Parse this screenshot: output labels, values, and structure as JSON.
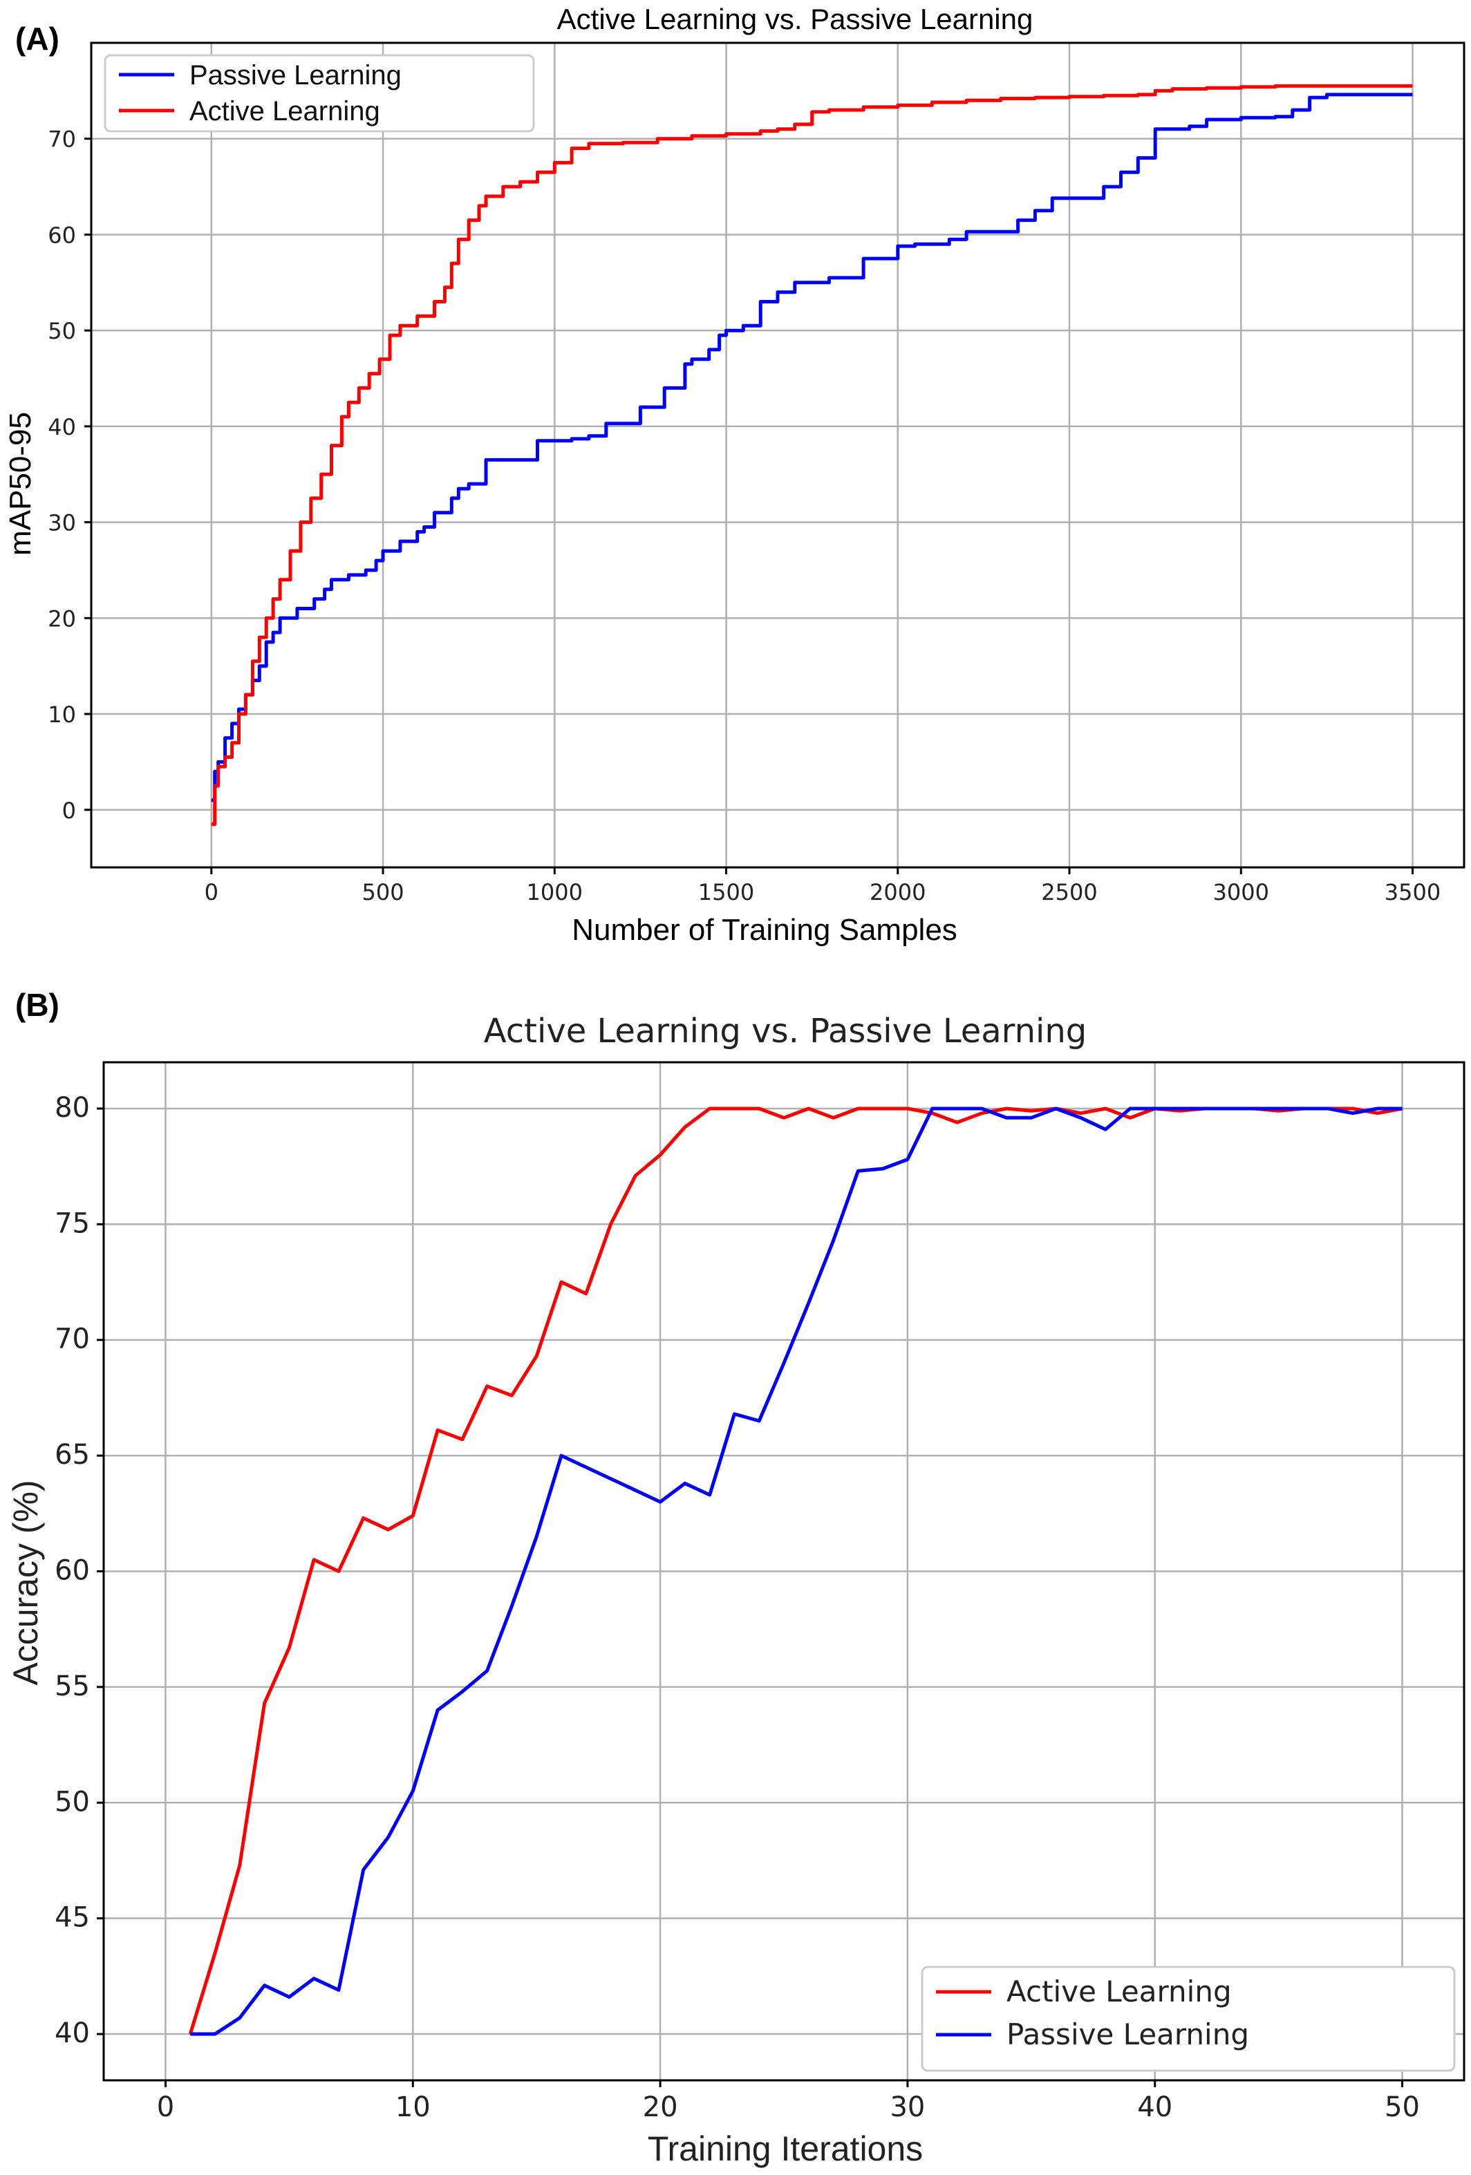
{
  "panels": {
    "a_label": "(A)",
    "b_label": "(B)"
  },
  "chart_data": [
    {
      "type": "line",
      "title": "Active Learning vs. Passive Learning",
      "xlabel": "Number of Training Samples",
      "ylabel": "mAP50-95",
      "xlim": [
        -350,
        3650
      ],
      "ylim": [
        -6,
        80
      ],
      "xticks": [
        0,
        500,
        1000,
        1500,
        2000,
        2500,
        3000,
        3500
      ],
      "yticks": [
        0,
        10,
        20,
        30,
        40,
        50,
        60,
        70
      ],
      "grid": true,
      "legend_position": "top-left",
      "step": true,
      "series": [
        {
          "name": "Passive Learning",
          "color": "#0000ff",
          "x": [
            0,
            10,
            20,
            40,
            60,
            80,
            100,
            120,
            140,
            160,
            180,
            200,
            250,
            300,
            330,
            350,
            400,
            450,
            480,
            500,
            550,
            600,
            620,
            650,
            700,
            720,
            750,
            800,
            850,
            900,
            950,
            1000,
            1050,
            1100,
            1150,
            1200,
            1250,
            1300,
            1320,
            1350,
            1380,
            1400,
            1450,
            1480,
            1500,
            1550,
            1600,
            1650,
            1700,
            1750,
            1800,
            1850,
            1900,
            1950,
            2000,
            2050,
            2100,
            2150,
            2200,
            2250,
            2300,
            2350,
            2400,
            2450,
            2500,
            2550,
            2600,
            2650,
            2700,
            2750,
            2800,
            2850,
            2900,
            2950,
            3000,
            3100,
            3150,
            3200,
            3250,
            3300,
            3400,
            3500
          ],
          "y": [
            1,
            4,
            5,
            7.5,
            9,
            10.5,
            12,
            13.5,
            15,
            17.5,
            18.5,
            20,
            21,
            22,
            23,
            24,
            24.5,
            25,
            26,
            27,
            28,
            29,
            29.5,
            31,
            32.5,
            33.5,
            34,
            36.5,
            36.5,
            36.5,
            38.5,
            38.5,
            38.7,
            39,
            40.3,
            40.3,
            42,
            42,
            44,
            44,
            46.5,
            47,
            48,
            49.5,
            50,
            50.5,
            53,
            54,
            55,
            55,
            55.5,
            55.5,
            57.5,
            57.5,
            58.8,
            59,
            59,
            59.5,
            60.3,
            60.3,
            60.3,
            61.5,
            62.5,
            63.8,
            63.8,
            63.8,
            65,
            66.5,
            68,
            71,
            71,
            71.3,
            72,
            72,
            72.2,
            72.3,
            73,
            74.3,
            74.6,
            74.6,
            74.6,
            74.6
          ]
        },
        {
          "name": "Active Learning",
          "color": "#ff0000",
          "x": [
            0,
            10,
            20,
            40,
            60,
            80,
            100,
            120,
            140,
            160,
            180,
            200,
            230,
            260,
            290,
            320,
            350,
            380,
            400,
            430,
            460,
            490,
            520,
            550,
            600,
            650,
            680,
            700,
            720,
            750,
            780,
            800,
            850,
            900,
            950,
            1000,
            1050,
            1100,
            1200,
            1300,
            1400,
            1500,
            1600,
            1650,
            1700,
            1750,
            1800,
            1900,
            2000,
            2100,
            2200,
            2300,
            2400,
            2500,
            2600,
            2700,
            2750,
            2800,
            2900,
            3000,
            3100,
            3200,
            3300,
            3400,
            3500
          ],
          "y": [
            -1.5,
            2.5,
            4.5,
            5.5,
            7,
            10,
            12,
            15.5,
            18,
            20,
            22,
            24,
            27,
            30,
            32.5,
            35,
            38,
            41,
            42.5,
            44,
            45.5,
            47,
            49.5,
            50.5,
            51.5,
            53,
            54.5,
            57,
            59.5,
            61.5,
            63,
            64,
            65,
            65.5,
            66.5,
            67.5,
            69,
            69.5,
            69.6,
            70,
            70.3,
            70.5,
            70.8,
            71,
            71.5,
            72.8,
            73,
            73.3,
            73.5,
            73.8,
            74,
            74.2,
            74.3,
            74.4,
            74.5,
            74.6,
            75,
            75.2,
            75.3,
            75.4,
            75.5,
            75.5,
            75.5,
            75.5,
            75.5
          ]
        }
      ]
    },
    {
      "type": "line",
      "title": "Active Learning vs. Passive Learning",
      "xlabel": "Training Iterations",
      "ylabel": "Accuracy (%)",
      "xlim": [
        -2.5,
        52.5
      ],
      "ylim": [
        38,
        82
      ],
      "xticks": [
        0,
        10,
        20,
        30,
        40,
        50
      ],
      "yticks": [
        40,
        45,
        50,
        55,
        60,
        65,
        70,
        75,
        80
      ],
      "grid": true,
      "legend_position": "lower-right",
      "series": [
        {
          "name": "Active Learning",
          "color": "#ff0000",
          "x": [
            1,
            2,
            3,
            4,
            5,
            6,
            7,
            8,
            9,
            10,
            11,
            12,
            13,
            14,
            15,
            16,
            17,
            18,
            19,
            20,
            21,
            22,
            23,
            24,
            25,
            26,
            27,
            28,
            29,
            30,
            31,
            32,
            33,
            34,
            35,
            36,
            37,
            38,
            39,
            40,
            41,
            42,
            43,
            44,
            45,
            46,
            47,
            48,
            49,
            50
          ],
          "y": [
            40,
            43.5,
            47.3,
            54.3,
            56.7,
            60.5,
            60,
            62.3,
            61.8,
            62.4,
            66.1,
            65.7,
            68,
            67.6,
            69.3,
            72.5,
            72,
            75,
            77.1,
            78,
            79.2,
            80,
            80,
            80,
            79.6,
            80,
            79.6,
            80,
            80,
            80,
            79.8,
            79.4,
            79.8,
            80,
            79.9,
            80,
            79.8,
            80,
            79.6,
            80,
            79.9,
            80,
            80,
            80,
            79.9,
            80,
            80,
            80,
            79.8,
            80
          ]
        },
        {
          "name": "Passive Learning",
          "color": "#0000ff",
          "x": [
            1,
            2,
            3,
            4,
            5,
            6,
            7,
            8,
            9,
            10,
            11,
            12,
            13,
            14,
            15,
            16,
            17,
            18,
            19,
            20,
            21,
            22,
            23,
            24,
            25,
            26,
            27,
            28,
            29,
            30,
            31,
            32,
            33,
            34,
            35,
            36,
            37,
            38,
            39,
            40,
            41,
            42,
            43,
            44,
            45,
            46,
            47,
            48,
            49,
            50
          ],
          "y": [
            40,
            40,
            40.7,
            42.1,
            41.6,
            42.4,
            41.9,
            47.1,
            48.5,
            50.5,
            54,
            54.8,
            55.7,
            58.5,
            61.5,
            65,
            64.5,
            64,
            63.5,
            63,
            63.8,
            63.3,
            66.8,
            66.5,
            69,
            71.6,
            74.3,
            77.3,
            77.4,
            77.8,
            80,
            80,
            80,
            79.6,
            79.6,
            80,
            79.6,
            79.1,
            80,
            80,
            80,
            80,
            80,
            80,
            80,
            80,
            80,
            79.8,
            80,
            80
          ]
        }
      ]
    }
  ]
}
